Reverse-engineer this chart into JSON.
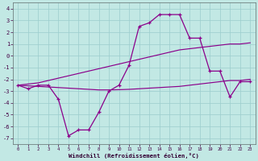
{
  "xlabel": "Windchill (Refroidissement éolien,°C)",
  "bg_color": "#c2e8e4",
  "grid_color": "#9ecece",
  "line_color": "#8b008b",
  "hours": [
    0,
    1,
    2,
    3,
    4,
    5,
    6,
    7,
    8,
    9,
    10,
    11,
    12,
    13,
    14,
    15,
    16,
    17,
    18,
    19,
    20,
    21,
    22,
    23
  ],
  "temp": [
    -2.5,
    -2.8,
    -2.5,
    -2.5,
    -3.7,
    -6.8,
    -6.3,
    -6.3,
    -4.8,
    -3.0,
    -2.5,
    -0.8,
    2.5,
    2.8,
    3.5,
    3.5,
    3.5,
    1.5,
    1.5,
    -1.3,
    -1.3,
    -3.5,
    -2.2,
    -2.2
  ],
  "trend_up": [
    -2.5,
    -2.4,
    -2.3,
    -2.1,
    -1.9,
    -1.7,
    -1.5,
    -1.3,
    -1.1,
    -0.9,
    -0.7,
    -0.5,
    -0.3,
    -0.1,
    0.1,
    0.3,
    0.5,
    0.6,
    0.7,
    0.8,
    0.9,
    1.0,
    1.0,
    1.1
  ],
  "trend_flat": [
    -2.5,
    -2.55,
    -2.6,
    -2.65,
    -2.7,
    -2.75,
    -2.8,
    -2.85,
    -2.9,
    -2.9,
    -2.88,
    -2.85,
    -2.8,
    -2.75,
    -2.7,
    -2.65,
    -2.6,
    -2.5,
    -2.4,
    -2.3,
    -2.2,
    -2.1,
    -2.1,
    -2.0
  ],
  "ylim": [
    -7.5,
    4.5
  ],
  "xlim": [
    -0.5,
    23.5
  ],
  "yticks": [
    -7,
    -6,
    -5,
    -4,
    -3,
    -2,
    -1,
    0,
    1,
    2,
    3,
    4
  ]
}
